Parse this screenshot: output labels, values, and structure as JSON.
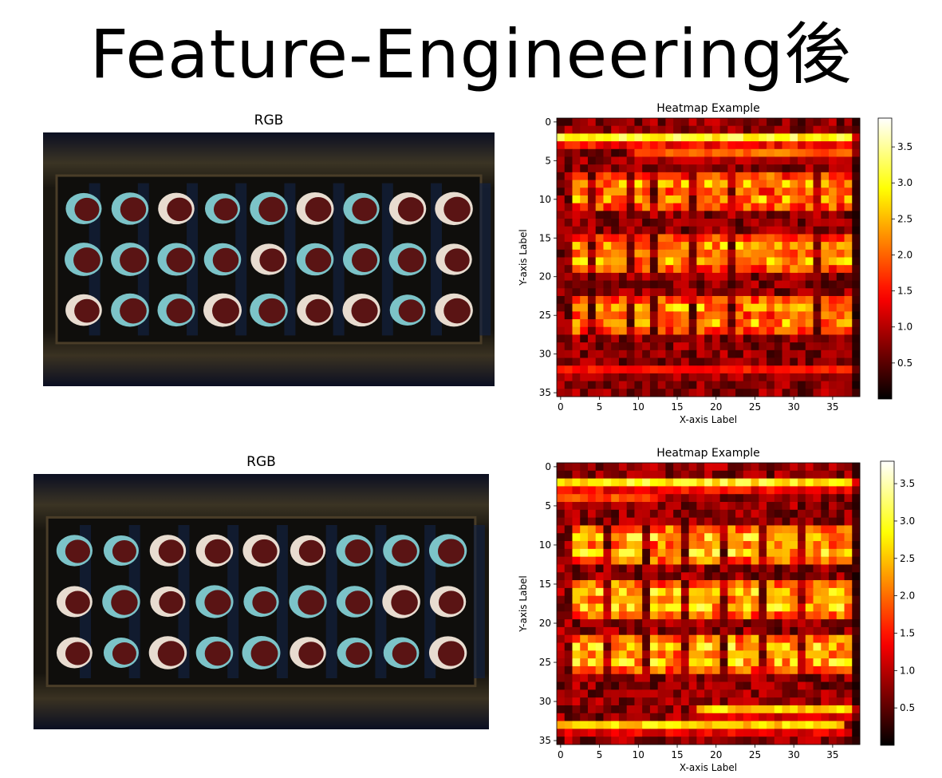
{
  "slide": {
    "title": "Feature-Engineering後"
  },
  "panels": [
    {
      "rgb_title": "RGB"
    },
    {
      "rgb_title": "RGB"
    }
  ],
  "chart_data": [
    {
      "type": "heatmap",
      "title": "Heatmap Example",
      "xlabel": "X-axis Label",
      "ylabel": "Y-axis Label",
      "cols": 39,
      "rows": 36,
      "xticks": [
        0,
        5,
        10,
        15,
        20,
        25,
        30,
        35
      ],
      "yticks": [
        0,
        5,
        10,
        15,
        20,
        25,
        30,
        35
      ],
      "colorbar": {
        "min": 0.0,
        "max": 3.9,
        "ticks": [
          0.5,
          1.0,
          1.5,
          2.0,
          2.5,
          3.0,
          3.5
        ],
        "colormap": "hot"
      },
      "hot_rows": [
        {
          "row": 2,
          "x0": 0,
          "x1": 38,
          "value": 3.0
        },
        {
          "row": 4,
          "x0": 10,
          "x1": 38,
          "value": 2.0
        },
        {
          "row": 32,
          "x0": 0,
          "x1": 38,
          "value": 1.5
        }
      ],
      "blob_rows": [
        8,
        10,
        16,
        18,
        24,
        26
      ],
      "blob_cols": [
        2,
        5,
        7,
        10,
        13,
        15,
        18,
        20,
        23,
        25,
        27,
        29,
        31,
        34,
        36
      ],
      "blob_value": 2.6
    },
    {
      "type": "heatmap",
      "title": "Heatmap Example",
      "xlabel": "X-axis Label",
      "ylabel": "Y-axis Label",
      "cols": 39,
      "rows": 36,
      "xticks": [
        0,
        5,
        10,
        15,
        20,
        25,
        30,
        35
      ],
      "yticks": [
        0,
        5,
        10,
        15,
        20,
        25,
        30,
        35
      ],
      "colorbar": {
        "min": 0.0,
        "max": 3.8,
        "ticks": [
          0.5,
          1.0,
          1.5,
          2.0,
          2.5,
          3.0,
          3.5
        ],
        "colormap": "hot"
      },
      "hot_rows": [
        {
          "row": 2,
          "x0": 0,
          "x1": 38,
          "value": 2.8
        },
        {
          "row": 4,
          "x0": 0,
          "x1": 12,
          "value": 1.8
        },
        {
          "row": 31,
          "x0": 18,
          "x1": 38,
          "value": 2.6
        },
        {
          "row": 33,
          "x0": 0,
          "x1": 36,
          "value": 2.6
        }
      ],
      "blob_rows": [
        9,
        11,
        16,
        18,
        23,
        25
      ],
      "blob_cols": [
        2,
        4,
        7,
        9,
        12,
        14,
        17,
        19,
        22,
        24,
        27,
        29,
        32,
        34,
        36
      ],
      "blob_value": 2.8
    }
  ]
}
